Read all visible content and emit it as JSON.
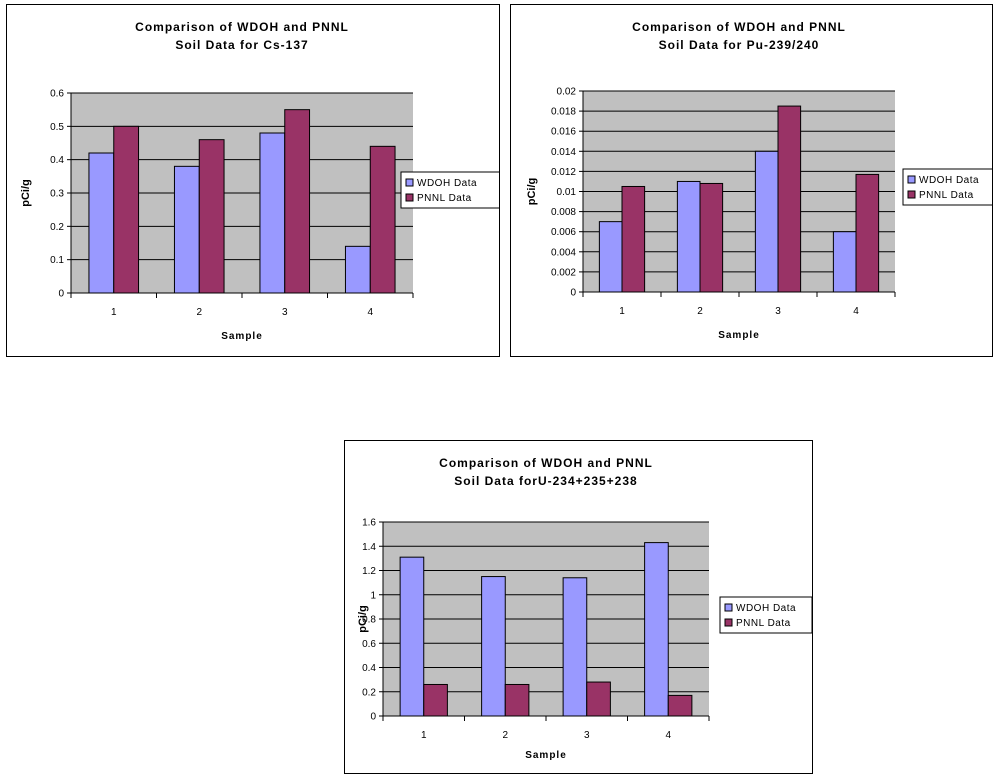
{
  "colors": {
    "wdoh": "#9999FF",
    "pnnl": "#993366",
    "plot_bg": "#C0C0C0"
  },
  "chart_data": [
    {
      "type": "bar",
      "title": [
        "Comparison of WDOH and PNNL",
        "Soil Data for Cs-137"
      ],
      "xlabel": "Sample",
      "ylabel": "pCi/g",
      "categories": [
        "1",
        "2",
        "3",
        "4"
      ],
      "ylim": [
        0,
        0.6
      ],
      "yticks": [
        "0",
        "0.1",
        "0.2",
        "0.3",
        "0.4",
        "0.5",
        "0.6"
      ],
      "grid": true,
      "legend_position": "right",
      "series": [
        {
          "name": "WDOH Data",
          "values": [
            0.42,
            0.38,
            0.48,
            0.14
          ]
        },
        {
          "name": "PNNL Data",
          "values": [
            0.5,
            0.46,
            0.55,
            0.44
          ]
        }
      ]
    },
    {
      "type": "bar",
      "title": [
        "Comparison of WDOH and PNNL",
        "Soil Data for Pu-239/240"
      ],
      "xlabel": "Sample",
      "ylabel": "pCi/g",
      "categories": [
        "1",
        "2",
        "3",
        "4"
      ],
      "ylim": [
        0,
        0.02
      ],
      "yticks": [
        "0",
        "0.002",
        "0.004",
        "0.006",
        "0.008",
        "0.01",
        "0.012",
        "0.014",
        "0.016",
        "0.018",
        "0.02"
      ],
      "grid": true,
      "legend_position": "right",
      "series": [
        {
          "name": "WDOH Data",
          "values": [
            0.007,
            0.011,
            0.014,
            0.006
          ]
        },
        {
          "name": "PNNL Data",
          "values": [
            0.0105,
            0.0108,
            0.0185,
            0.0117
          ]
        }
      ]
    },
    {
      "type": "bar",
      "title": [
        "Comparison of WDOH and PNNL",
        "Soil Data forU-234+235+238"
      ],
      "xlabel": "Sample",
      "ylabel": "pCi/g",
      "categories": [
        "1",
        "2",
        "3",
        "4"
      ],
      "ylim": [
        0,
        1.6
      ],
      "yticks": [
        "0",
        "0.2",
        "0.4",
        "0.6",
        "0.8",
        "1",
        "1.2",
        "1.4",
        "1.6"
      ],
      "grid": true,
      "legend_position": "right",
      "series": [
        {
          "name": "WDOH Data",
          "values": [
            1.31,
            1.15,
            1.14,
            1.43
          ]
        },
        {
          "name": "PNNL Data",
          "values": [
            0.26,
            0.26,
            0.28,
            0.17
          ]
        }
      ]
    }
  ]
}
